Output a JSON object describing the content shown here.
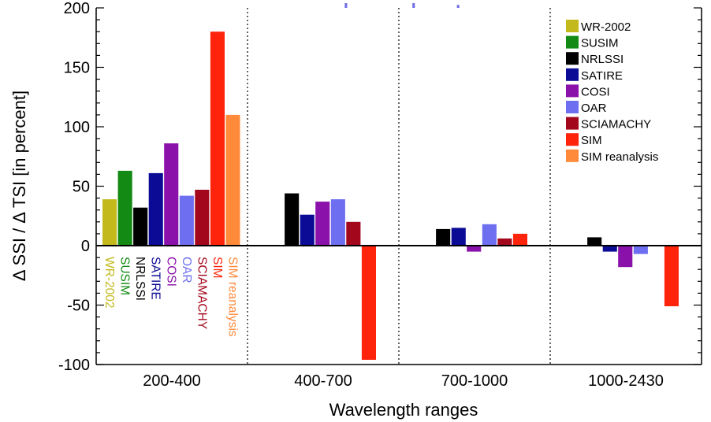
{
  "chart_data": {
    "type": "bar",
    "title": "bar chart",
    "title_color": "#6f6fe6",
    "xlabel": "Wavelength ranges",
    "ylabel": "Δ SSI  /  Δ TSI  [in percent]",
    "ylim": [
      -100,
      200
    ],
    "yticks": [
      -100,
      -50,
      0,
      50,
      100,
      150,
      200
    ],
    "categories": [
      "200-400",
      "400-700",
      "700-1000",
      "1000-2430"
    ],
    "legend_position": "top-right",
    "series": [
      {
        "name": "WR-2002",
        "color": "#c3b91c",
        "values": [
          39,
          null,
          null,
          null
        ]
      },
      {
        "name": "SUSIM",
        "color": "#138a13",
        "values": [
          63,
          null,
          null,
          null
        ]
      },
      {
        "name": "NRLSSI",
        "color": "#000000",
        "values": [
          32,
          44,
          14,
          7
        ]
      },
      {
        "name": "SATIRE",
        "color": "#0b0b96",
        "values": [
          61,
          26,
          15,
          -5
        ]
      },
      {
        "name": "COSI",
        "color": "#8a11aa",
        "values": [
          86,
          37,
          -5,
          -18
        ]
      },
      {
        "name": "OAR",
        "color": "#6e6ef0",
        "values": [
          42,
          39,
          18,
          -7
        ]
      },
      {
        "name": "SCIAMACHY",
        "color": "#a3071c",
        "values": [
          47,
          20,
          6,
          null
        ]
      },
      {
        "name": "SIM",
        "color": "#fe230b",
        "values": [
          180,
          -96,
          10,
          -51
        ]
      },
      {
        "name": "SIM reanalysis",
        "color": "#ff8a3a",
        "values": [
          110,
          null,
          null,
          null
        ]
      }
    ]
  }
}
